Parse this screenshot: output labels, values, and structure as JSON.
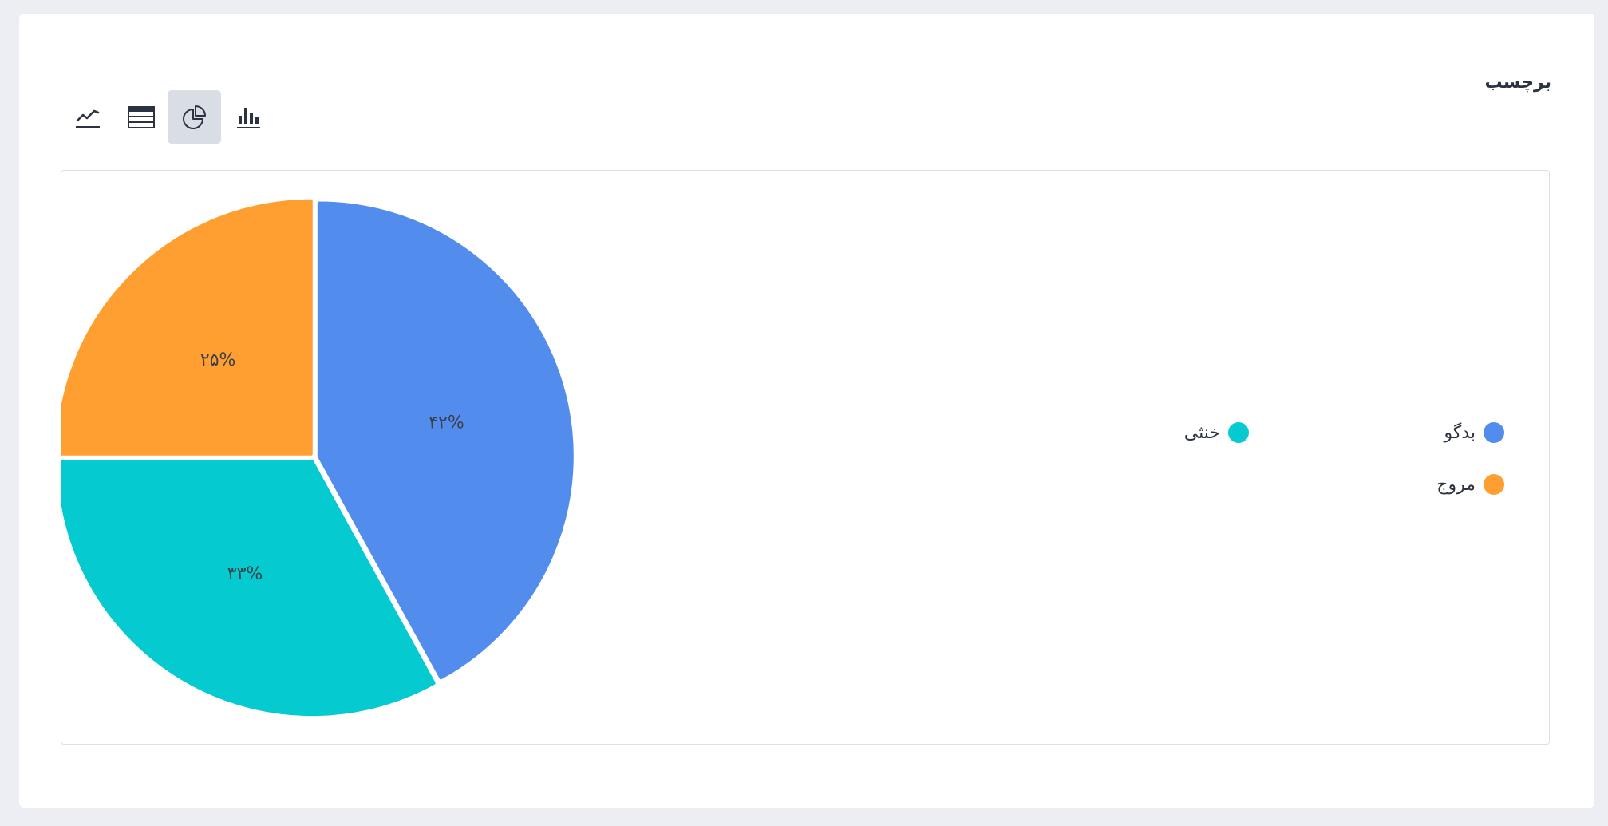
{
  "title": "برچسب",
  "toolbar": {
    "buttons": [
      {
        "icon": "line-chart-icon",
        "active": false
      },
      {
        "icon": "table-icon",
        "active": false
      },
      {
        "icon": "pie-chart-icon",
        "active": true
      },
      {
        "icon": "bar-chart-icon",
        "active": false
      }
    ]
  },
  "colors": {
    "blue": "#528ded",
    "cyan": "#05cbd1",
    "orange": "#ff9f31"
  },
  "chart_data": {
    "type": "pie",
    "slices": [
      {
        "name": "بدگو",
        "value": 42,
        "label": "۴۲%",
        "color": "#528ded"
      },
      {
        "name": "خنثی",
        "value": 33,
        "label": "۳۳%",
        "color": "#05cbd1"
      },
      {
        "name": "مروج",
        "value": 25,
        "label": "۲۵%",
        "color": "#ff9f31"
      }
    ],
    "legend": [
      "بدگو",
      "خنثی",
      "مروج"
    ],
    "legend_placement": "right"
  }
}
